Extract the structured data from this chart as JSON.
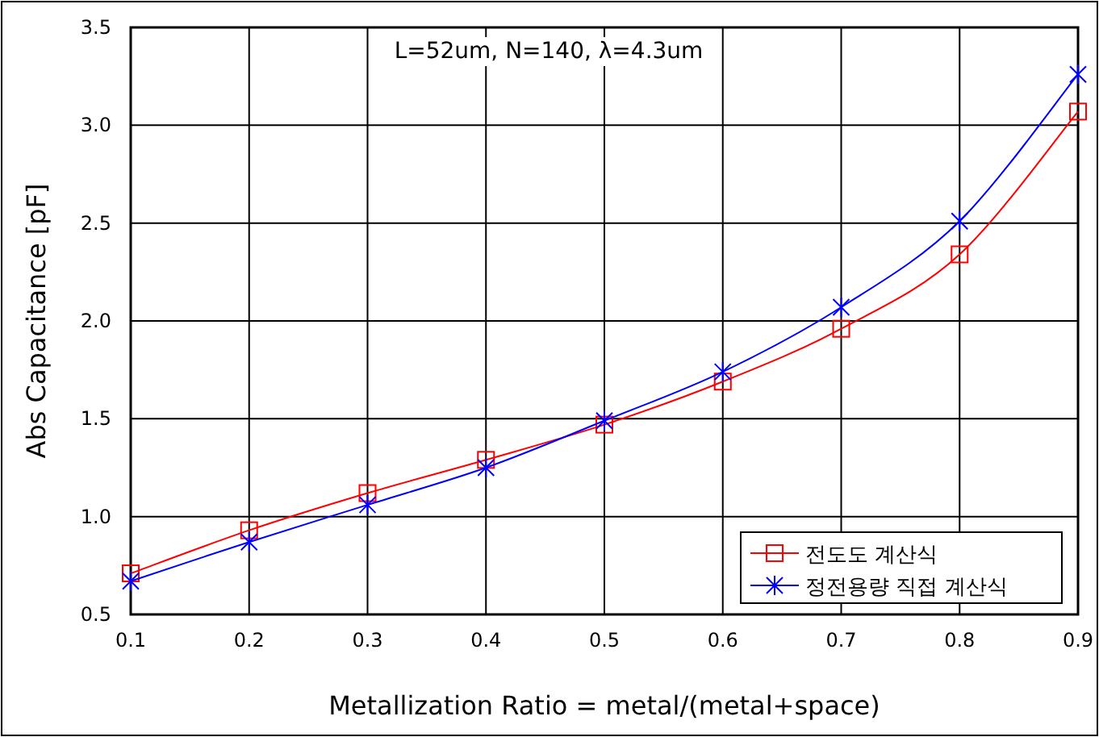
{
  "chart_data": {
    "type": "line",
    "xlabel": "Metallization Ratio = metal/(metal+space)",
    "ylabel": "Abs Capacitance [pF]",
    "annotations": [
      "L=52um, N=140, λ=4.3um"
    ],
    "x": [
      0.1,
      0.2,
      0.3,
      0.4,
      0.5,
      0.6,
      0.7,
      0.8,
      0.9
    ],
    "series": [
      {
        "name": "전도도 계산식",
        "color": "#ff0000",
        "marker": "square",
        "values": [
          0.71,
          0.93,
          1.12,
          1.29,
          1.47,
          1.69,
          1.96,
          2.34,
          3.07
        ]
      },
      {
        "name": "정전용량 직접 계산식",
        "color": "#0000ff",
        "marker": "cross",
        "values": [
          0.67,
          0.87,
          1.06,
          1.25,
          1.49,
          1.74,
          2.07,
          2.51,
          3.26
        ]
      }
    ],
    "xlim": [
      0.1,
      0.9
    ],
    "xticks": [
      0.1,
      0.2,
      0.3,
      0.4,
      0.5,
      0.6,
      0.7,
      0.8,
      0.9
    ],
    "ylim": [
      0.5,
      3.5
    ],
    "yticks": [
      {
        "value": 0.5,
        "label": "0.5"
      },
      {
        "value": 1,
        "label": "1.0"
      },
      {
        "value": 1.5,
        "label": "1.5"
      },
      {
        "value": 2,
        "label": "2.0"
      },
      {
        "value": 2.5,
        "label": "2.5"
      },
      {
        "value": 3,
        "label": "3.0"
      },
      {
        "value": 3.5,
        "label": "3.5"
      }
    ],
    "grid": true,
    "legend": "bottom right",
    "line_style": "solid"
  }
}
